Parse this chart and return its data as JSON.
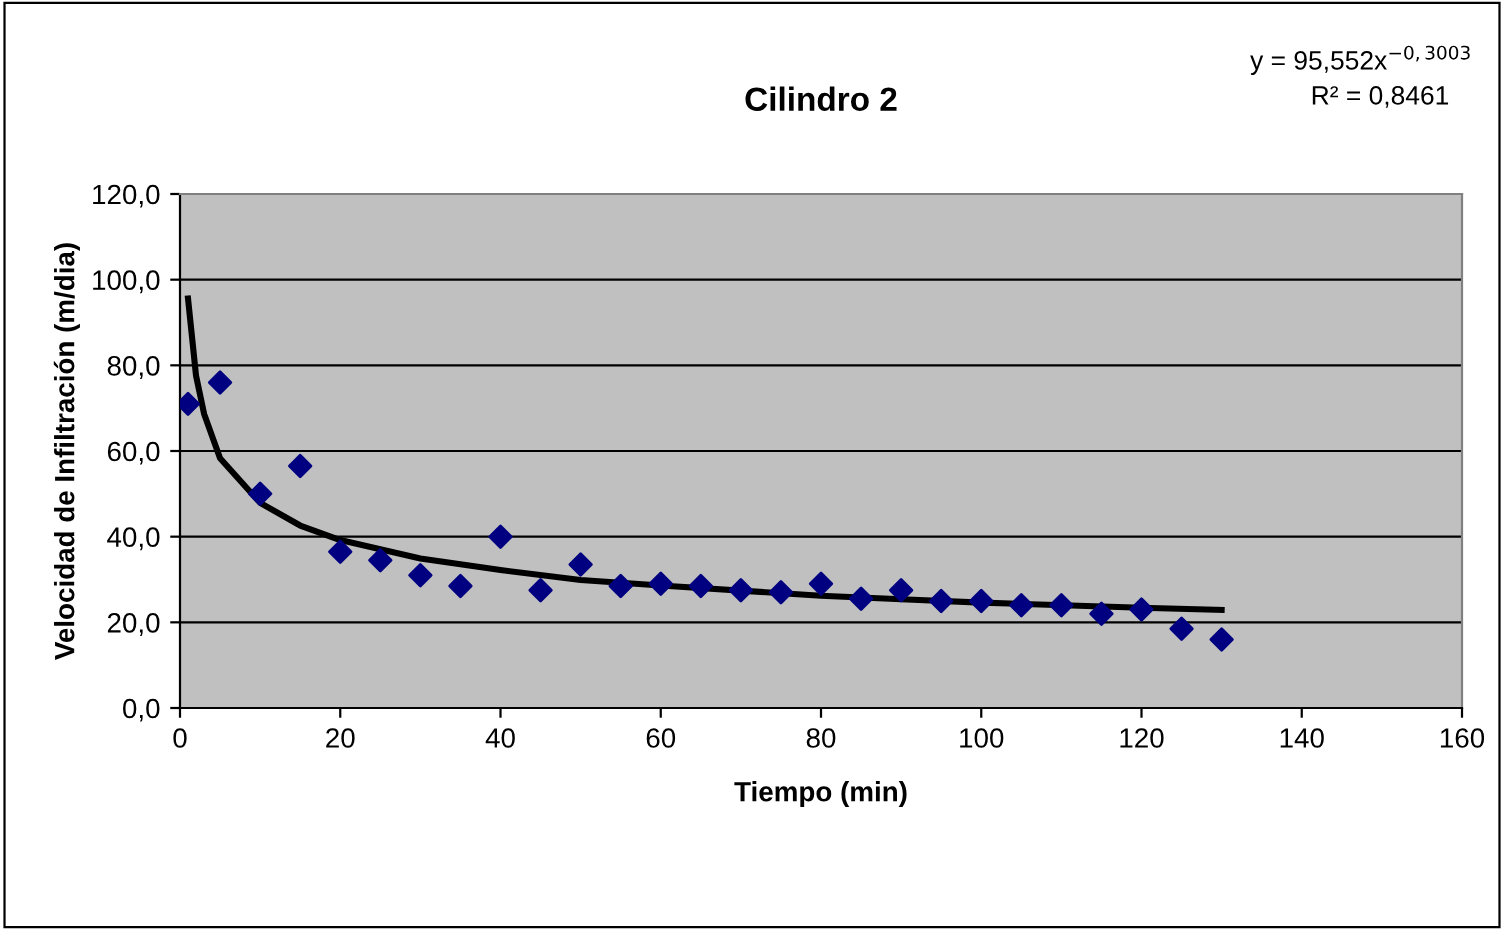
{
  "chart_data": {
    "type": "scatter",
    "title": "Cilindro 2",
    "xlabel": "Tiempo (min)",
    "ylabel": "Velocidad de Infiltración (m/dia)",
    "annotations": [
      "y = 95,552x$^{−0,3003}$",
      "R² = 0,8461"
    ],
    "series": [
      {
        "color": "#000080",
        "marker": "diamond",
        "x": [
          1,
          5,
          10,
          15,
          20,
          25,
          30,
          35,
          40,
          45,
          50,
          55,
          60,
          65,
          70,
          75,
          80,
          85,
          90,
          95,
          100,
          105,
          110,
          115,
          120,
          125,
          130
        ],
        "values": [
          71,
          76,
          50,
          56.5,
          36.5,
          34.5,
          31,
          28.5,
          40,
          27.5,
          33.5,
          28.5,
          29,
          28.5,
          27.5,
          27,
          29,
          25.5,
          27.5,
          25,
          25,
          24,
          24,
          22,
          23,
          18.5,
          16
        ]
      },
      {
        "type": "line",
        "color": "#000000",
        "marker": "none",
        "line_style": "solid",
        "x": [
          1,
          2,
          3,
          5,
          10,
          15,
          20,
          30,
          40,
          50,
          60,
          80,
          90,
          100,
          120,
          130
        ],
        "values": [
          95.6,
          77.6,
          68.7,
          58.3,
          47.9,
          42.6,
          39.2,
          34.9,
          32.2,
          29.9,
          28.6,
          26.2,
          25.4,
          24.6,
          23.4,
          22.9
        ]
      }
    ],
    "xlim": [
      0,
      160
    ],
    "xticks": [
      0,
      20,
      40,
      60,
      80,
      100,
      120,
      140,
      160
    ],
    "ylim": [
      0,
      120
    ],
    "yticks": [
      {
        "value": 0,
        "label": "0,0"
      },
      {
        "value": 20,
        "label": "20,0"
      },
      {
        "value": 40,
        "label": "40,0"
      },
      {
        "value": 60,
        "label": "60,0"
      },
      {
        "value": 80,
        "label": "80,0"
      },
      {
        "value": 100,
        "label": "100,0"
      },
      {
        "value": 120,
        "label": "120,0"
      }
    ],
    "grid": "y",
    "legend": false
  }
}
